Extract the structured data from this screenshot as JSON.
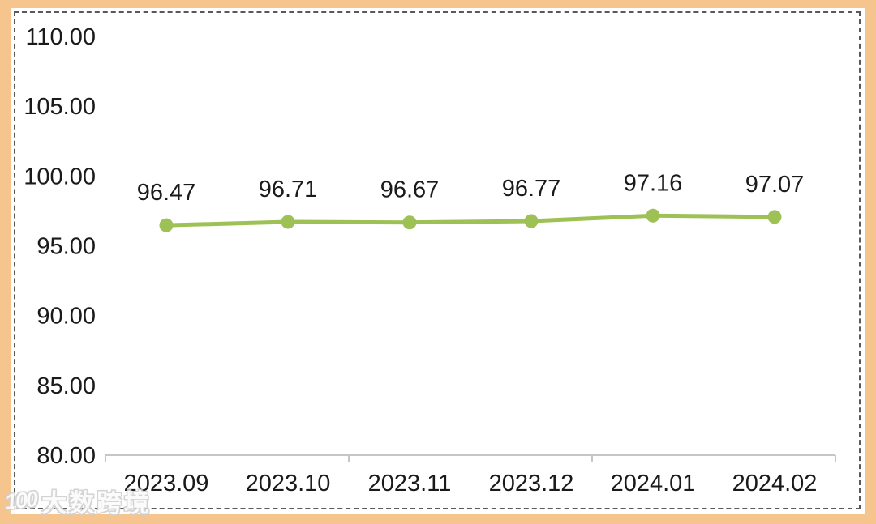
{
  "watermark": {
    "logo_text": "100",
    "text": "大数跨境"
  },
  "chart_data": {
    "type": "line",
    "title": "",
    "xlabel": "",
    "ylabel": "",
    "categories": [
      "2023.09",
      "2023.10",
      "2023.11",
      "2023.12",
      "2024.01",
      "2024.02"
    ],
    "values": [
      96.47,
      96.71,
      96.67,
      96.77,
      97.16,
      97.07
    ],
    "data_labels": [
      "96.47",
      "96.71",
      "96.67",
      "96.77",
      "97.16",
      "97.07"
    ],
    "y_ticks": [
      "80.00",
      "85.00",
      "90.00",
      "95.00",
      "100.00",
      "105.00",
      "110.00"
    ],
    "ylim": [
      80,
      110
    ],
    "y_step": 5,
    "grid": false,
    "legend_position": "none",
    "colors": {
      "line": "#9DC154",
      "marker": "#9DC154",
      "axis": "#C6C6C6",
      "text": "#1A1A1A",
      "frame": "#F6C48D",
      "dashed_border": "#595959"
    }
  }
}
